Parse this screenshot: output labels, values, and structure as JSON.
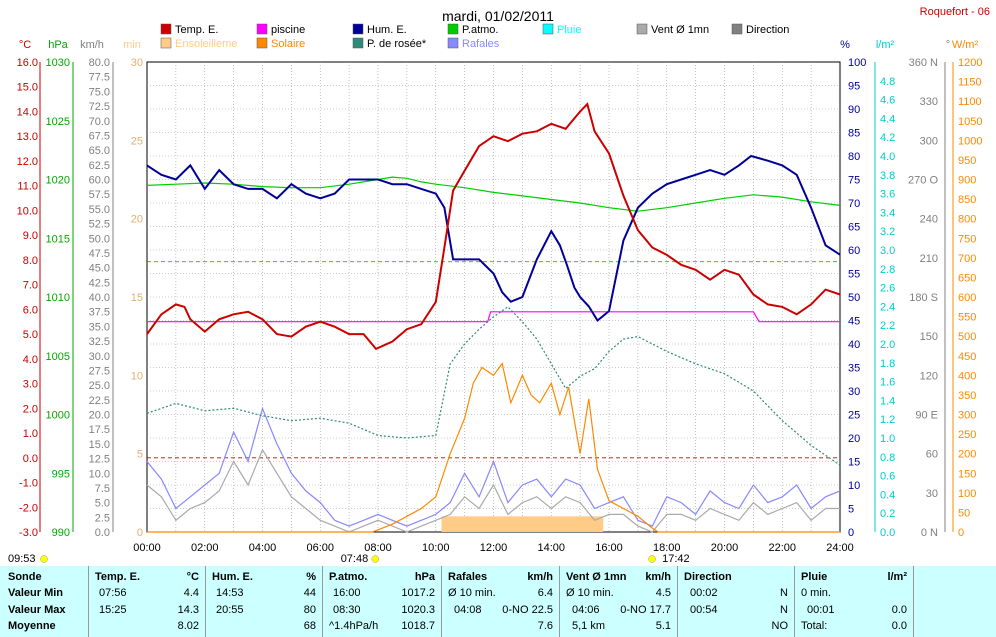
{
  "header": {
    "title": "mardi, 01/02/2011",
    "station": "Roquefort - 06"
  },
  "legend": [
    {
      "label": "Temp. E.",
      "color": "#cc0000"
    },
    {
      "label": "piscine",
      "color": "#ff00ff"
    },
    {
      "label": "Hum. E.",
      "color": "#000099"
    },
    {
      "label": "P.atmo.",
      "color": "#00cc00"
    },
    {
      "label": "Pluie",
      "color": "#00ffff"
    },
    {
      "label": "Vent Ø 1mn",
      "color": "#aaaaaa"
    },
    {
      "label": "Direction",
      "color": "#808080"
    },
    {
      "label": "Ensoleilleme",
      "color": "#ffcc88"
    },
    {
      "label": "Solaire",
      "color": "#ff8800"
    },
    {
      "label": "P. de rosée*",
      "color": "#2e8b77"
    },
    {
      "label": "Rafales",
      "color": "#8888ff"
    }
  ],
  "axes": {
    "temp": {
      "unit": "°C",
      "ticks": [
        "16.0",
        "15.0",
        "14.0",
        "13.0",
        "12.0",
        "11.0",
        "10.0",
        "9.0",
        "8.0",
        "7.0",
        "6.0",
        "5.0",
        "4.0",
        "3.0",
        "2.0",
        "1.0",
        "0.0",
        "-1.0",
        "-2.0",
        "-3.0"
      ]
    },
    "pressure": {
      "unit": "hPa",
      "ticks": [
        "1030",
        "1025",
        "1020",
        "1015",
        "1010",
        "1005",
        "1000",
        "995",
        "990"
      ]
    },
    "wind": {
      "unit": "km/h",
      "ticks": [
        "80.0",
        "77.5",
        "75.0",
        "72.5",
        "70.0",
        "67.5",
        "65.0",
        "62.5",
        "60.0",
        "57.5",
        "55.0",
        "52.5",
        "50.0",
        "47.5",
        "45.0",
        "42.5",
        "40.0",
        "37.5",
        "35.0",
        "32.5",
        "30.0",
        "27.5",
        "25.0",
        "22.5",
        "20.0",
        "17.5",
        "15.0",
        "12.5",
        "10.0",
        "7.5",
        "5.0",
        "2.5",
        "0.0"
      ]
    },
    "minutes": {
      "unit": "min",
      "ticks": [
        "30",
        "25",
        "20",
        "15",
        "10",
        "5",
        "0"
      ]
    },
    "humidity": {
      "unit": "%",
      "ticks": [
        "100",
        "95",
        "90",
        "85",
        "80",
        "75",
        "70",
        "65",
        "60",
        "55",
        "50",
        "45",
        "40",
        "35",
        "30",
        "25",
        "20",
        "15",
        "10",
        "5",
        "0"
      ]
    },
    "rain": {
      "unit": "l/m²",
      "ticks": [
        "4.8",
        "4.6",
        "4.4",
        "4.2",
        "4.0",
        "3.8",
        "3.6",
        "3.4",
        "3.2",
        "3.0",
        "2.8",
        "2.6",
        "2.4",
        "2.2",
        "2.0",
        "1.8",
        "1.6",
        "1.4",
        "1.2",
        "1.0",
        "0.8",
        "0.6",
        "0.4",
        "0.2",
        "0.0"
      ]
    },
    "direction": {
      "unit": "°",
      "ticks": [
        "360 N",
        "330",
        "300",
        "270 O",
        "240",
        "210",
        "180 S",
        "150",
        "120",
        "90 E",
        "60",
        "30",
        "0 N"
      ]
    },
    "solar": {
      "unit": "W/m²",
      "ticks": [
        "1200",
        "1150",
        "1100",
        "1050",
        "1000",
        "950",
        "900",
        "850",
        "800",
        "750",
        "700",
        "650",
        "600",
        "550",
        "500",
        "450",
        "400",
        "350",
        "300",
        "250",
        "200",
        "150",
        "100",
        "50",
        "0"
      ]
    },
    "time": {
      "ticks": [
        "00:00",
        "02:00",
        "04:00",
        "06:00",
        "08:00",
        "10:00",
        "12:00",
        "14:00",
        "16:00",
        "18:00",
        "20:00",
        "22:00",
        "24:00"
      ]
    }
  },
  "markers": {
    "moonset": "09:53",
    "sunrise": "07:48",
    "sunset": "17:42"
  },
  "chart_data": {
    "type": "line",
    "x_unit": "hour of day",
    "x_range": [
      0,
      24
    ],
    "series": [
      {
        "name": "Temp. E.",
        "axis": "°C",
        "x": [
          0,
          0.5,
          1,
          1.3,
          1.5,
          2,
          2.5,
          3,
          3.5,
          4,
          4.5,
          5,
          5.5,
          6,
          6.5,
          7,
          7.5,
          7.93,
          8.5,
          9,
          9.5,
          10,
          10.3,
          10.6,
          11,
          11.5,
          12,
          12.5,
          13,
          13.5,
          14,
          14.5,
          15,
          15.25,
          15.5,
          16,
          16.5,
          17,
          17.5,
          18,
          18.5,
          19,
          19.5,
          20,
          20.5,
          21,
          21.5,
          22,
          22.5,
          23,
          23.5,
          24
        ],
        "y": [
          5.0,
          5.8,
          6.2,
          6.1,
          5.6,
          5.1,
          5.6,
          5.8,
          5.9,
          5.6,
          5.0,
          4.9,
          5.3,
          5.5,
          5.3,
          5.0,
          5.0,
          4.4,
          4.7,
          5.2,
          5.4,
          6.3,
          8.5,
          10.8,
          11.6,
          12.6,
          13.0,
          12.8,
          13.1,
          13.2,
          13.5,
          13.3,
          14.0,
          14.3,
          13.2,
          12.3,
          10.6,
          9.2,
          8.5,
          8.2,
          7.8,
          7.6,
          7.2,
          7.6,
          7.4,
          6.6,
          6.2,
          6.1,
          5.8,
          6.2,
          6.8,
          6.6
        ]
      },
      {
        "name": "Hum. E.",
        "axis": "%",
        "x": [
          0,
          0.5,
          1,
          1.5,
          2,
          2.5,
          3,
          3.5,
          4,
          4.5,
          5,
          5.5,
          6,
          6.5,
          7,
          7.5,
          8,
          8.5,
          9,
          9.5,
          10,
          10.3,
          10.6,
          11,
          11.5,
          12,
          12.3,
          12.6,
          13,
          13.5,
          14,
          14.3,
          14.53,
          14.8,
          15,
          15.3,
          15.6,
          16,
          16.5,
          17,
          17.5,
          18,
          18.5,
          19,
          19.5,
          20,
          20.5,
          20.92,
          21.5,
          22,
          22.5,
          23,
          23.5,
          24
        ],
        "y": [
          78,
          76,
          75,
          78,
          73,
          77,
          74,
          73,
          73,
          71,
          74,
          72,
          71,
          72,
          75,
          75,
          75,
          74,
          74,
          73,
          72,
          69,
          58,
          58,
          58,
          55,
          51,
          49,
          50,
          58,
          64,
          61,
          57,
          52,
          50,
          48,
          45,
          47,
          62,
          69,
          72,
          74,
          75,
          76,
          77,
          76,
          78,
          80,
          79,
          78,
          76,
          69,
          61,
          59
        ]
      },
      {
        "name": "P.atmo.",
        "axis": "hPa",
        "x": [
          0,
          1,
          2,
          3,
          4,
          5,
          6,
          7,
          8,
          8.5,
          9,
          9.5,
          10,
          11,
          12,
          13,
          14,
          15,
          16,
          17,
          18,
          19,
          20,
          21,
          22,
          23,
          24
        ],
        "y": [
          1019.5,
          1019.6,
          1019.7,
          1019.6,
          1019.4,
          1019.3,
          1019.3,
          1019.6,
          1020.0,
          1020.2,
          1020.1,
          1019.8,
          1019.6,
          1019.3,
          1018.9,
          1018.6,
          1018.3,
          1018.0,
          1017.6,
          1017.3,
          1017.6,
          1018.0,
          1018.4,
          1018.7,
          1018.5,
          1018.1,
          1017.8
        ]
      },
      {
        "name": "piscine",
        "axis": "°C",
        "x": [
          0,
          11.8,
          11.9,
          16,
          16.2,
          21,
          21.2,
          24
        ],
        "y": [
          5.5,
          5.5,
          5.9,
          5.9,
          5.9,
          5.9,
          5.5,
          5.5
        ]
      },
      {
        "name": "P. de rosée*",
        "axis": "°C",
        "x": [
          0,
          1,
          2,
          3,
          4,
          5,
          6,
          7,
          8,
          9,
          10,
          10.5,
          11,
          11.5,
          12,
          12.5,
          13,
          13.5,
          14,
          14.5,
          15,
          15.5,
          16,
          16.5,
          17,
          18,
          19,
          20,
          21,
          22,
          23,
          24
        ],
        "y": [
          1.8,
          2.2,
          1.9,
          2.0,
          1.7,
          1.5,
          1.6,
          1.4,
          0.9,
          0.8,
          0.9,
          3.8,
          4.6,
          5.2,
          5.7,
          6.1,
          5.5,
          4.8,
          3.8,
          2.8,
          3.3,
          3.6,
          4.3,
          4.8,
          4.9,
          4.3,
          3.8,
          3.4,
          2.7,
          1.5,
          0.5,
          -0.3
        ]
      },
      {
        "name": "Solaire",
        "axis": "W/m²",
        "x": [
          0,
          7.8,
          8.5,
          9,
          9.5,
          10,
          10.5,
          11,
          11.3,
          11.6,
          12,
          12.3,
          12.6,
          13,
          13.3,
          13.6,
          14,
          14.3,
          14.6,
          15,
          15.3,
          15.6,
          16,
          16.5,
          17,
          17.5,
          17.7,
          24
        ],
        "y": [
          0,
          0,
          20,
          40,
          60,
          90,
          200,
          290,
          380,
          420,
          400,
          430,
          330,
          400,
          350,
          330,
          380,
          300,
          370,
          200,
          340,
          160,
          80,
          60,
          40,
          10,
          0,
          0
        ]
      },
      {
        "name": "Rafales",
        "axis": "km/h",
        "x": [
          0,
          0.5,
          1,
          1.5,
          2,
          2.5,
          3,
          3.5,
          4,
          4.5,
          5,
          5.5,
          6,
          6.5,
          7,
          7.5,
          8,
          8.5,
          9,
          9.5,
          10,
          10.5,
          11,
          11.5,
          12,
          12.5,
          13,
          13.5,
          14,
          14.5,
          15,
          15.5,
          16,
          16.5,
          17,
          17.5,
          18,
          18.5,
          19,
          19.5,
          20,
          20.5,
          21,
          21.5,
          22,
          22.5,
          23,
          23.5,
          24
        ],
        "y": [
          12,
          9,
          4,
          6,
          8,
          10,
          17,
          12,
          21,
          15,
          10,
          7,
          5,
          2,
          1,
          2,
          3,
          2,
          1,
          2,
          3,
          5,
          10,
          6,
          12,
          5,
          8,
          9,
          6,
          9,
          8,
          4,
          5,
          6,
          2,
          1,
          6,
          5,
          3,
          7,
          5,
          4,
          8,
          5,
          6,
          8,
          4,
          6,
          7
        ]
      },
      {
        "name": "Vent Ø 1mn",
        "axis": "km/h",
        "x": [
          0,
          0.5,
          1,
          1.5,
          2,
          2.5,
          3,
          3.5,
          4,
          4.5,
          5,
          5.5,
          6,
          6.5,
          7,
          7.5,
          8,
          8.5,
          9,
          9.5,
          10,
          10.5,
          11,
          11.5,
          12,
          12.5,
          13,
          13.5,
          14,
          14.5,
          15,
          15.5,
          16,
          16.5,
          17,
          17.5,
          18,
          18.5,
          19,
          19.5,
          20,
          20.5,
          21,
          21.5,
          22,
          22.5,
          23,
          23.5,
          24
        ],
        "y": [
          8,
          6,
          2,
          4,
          5,
          7,
          12,
          8,
          14,
          10,
          6,
          4,
          2,
          1,
          0,
          1,
          2,
          1,
          0,
          1,
          2,
          3,
          6,
          4,
          8,
          3,
          5,
          6,
          4,
          6,
          5,
          2,
          3,
          3,
          1,
          0,
          3,
          3,
          2,
          4,
          3,
          2,
          5,
          3,
          4,
          5,
          2,
          4,
          4
        ]
      },
      {
        "name": "Ensoleilleme",
        "axis": "min",
        "x": [
          0,
          10.2,
          10.2,
          15.8,
          15.8,
          24
        ],
        "y": [
          0,
          0,
          1,
          1,
          0,
          0
        ]
      }
    ]
  },
  "summary": {
    "columns": [
      {
        "title": "Sonde",
        "rows": [
          "Valeur Min",
          "Valeur Max",
          "Moyenne"
        ]
      },
      {
        "title": "Temp. E.",
        "unit": "°C",
        "rows": [
          [
            "07:56",
            "4.4"
          ],
          [
            "15:25",
            "14.3"
          ],
          [
            "",
            "8.02"
          ]
        ]
      },
      {
        "title": "Hum. E.",
        "unit": "%",
        "rows": [
          [
            "14:53",
            "44"
          ],
          [
            "20:55",
            "80"
          ],
          [
            "",
            "68"
          ]
        ]
      },
      {
        "title": "P.atmo.",
        "unit": "hPa",
        "rows": [
          [
            "16:00",
            "1017.2"
          ],
          [
            "08:30",
            "1020.3"
          ],
          [
            "^1.4hPa/h",
            "1018.7"
          ]
        ]
      },
      {
        "title": "Rafales",
        "unit": "km/h",
        "rows": [
          [
            "Ø 10 min.",
            "6.4"
          ],
          [
            "04:08",
            "0-NO 22.5"
          ],
          [
            "",
            "7.6"
          ]
        ]
      },
      {
        "title": "Vent Ø 1mn",
        "unit": "km/h",
        "rows": [
          [
            "Ø 10 min.",
            "4.5"
          ],
          [
            "04:06",
            "0-NO 17.7"
          ],
          [
            "5,1 km",
            "5.1"
          ]
        ]
      },
      {
        "title": "Direction",
        "unit": "",
        "rows": [
          [
            "00:02",
            "N"
          ],
          [
            "00:54",
            "N"
          ],
          [
            "",
            "NO"
          ]
        ]
      },
      {
        "title": "Pluie",
        "unit": "l/m²",
        "rows": [
          [
            "0 min.",
            ""
          ],
          [
            "00:01",
            "0.0"
          ],
          [
            "Total:",
            "0.0"
          ]
        ]
      }
    ]
  }
}
